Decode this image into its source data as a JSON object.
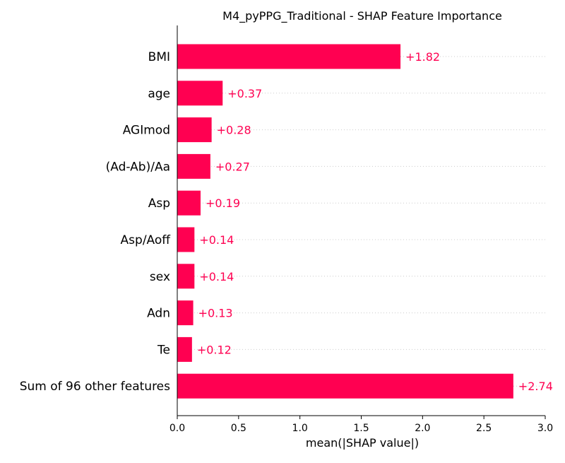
{
  "chart_data": {
    "type": "bar",
    "orientation": "horizontal",
    "title": "M4_pyPPG_Traditional - SHAP Feature Importance",
    "xlabel": "mean(|SHAP value|)",
    "ylabel": "",
    "categories": [
      "BMI",
      "age",
      "AGImod",
      "(Ad-Ab)/Aa",
      "Asp",
      "Asp/Aoff",
      "sex",
      "Adn",
      "Te",
      "Sum of 96 other features"
    ],
    "values": [
      1.82,
      0.37,
      0.28,
      0.27,
      0.19,
      0.14,
      0.14,
      0.13,
      0.12,
      2.74
    ],
    "value_labels": [
      "+1.82",
      "+0.37",
      "+0.28",
      "+0.27",
      "+0.19",
      "+0.14",
      "+0.14",
      "+0.13",
      "+0.12",
      "+2.74"
    ],
    "xlim": [
      0.0,
      3.0
    ],
    "xticks": [
      0.0,
      0.5,
      1.0,
      1.5,
      2.0,
      2.5,
      3.0
    ],
    "xtick_labels": [
      "0.0",
      "0.5",
      "1.0",
      "1.5",
      "2.0",
      "2.5",
      "3.0"
    ],
    "grid": "horizontal dotted lines",
    "legend": "none",
    "bar_color": "#ff0051"
  }
}
